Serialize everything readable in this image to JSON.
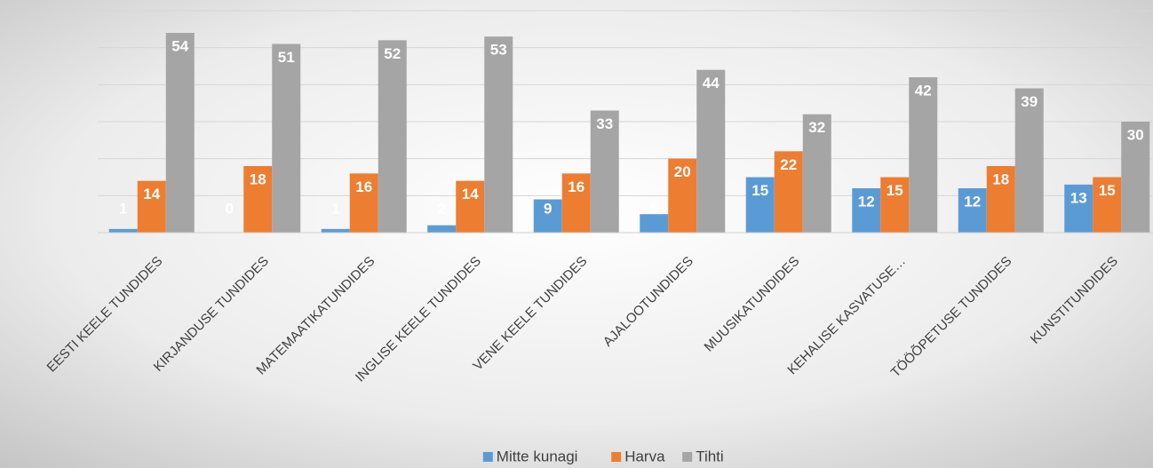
{
  "chart_data": {
    "type": "bar",
    "categories": [
      "EESTI KEELE TUNDIDES",
      "KIRJANDUSE TUNDIDES",
      "MATEMAATIKATUNDIDES",
      "INGLISE KEELE TUNDIDES",
      "VENE KEELE TUNDIDES",
      "AJALOOTUNDIDES",
      "MUUSIKATUNDIDES",
      "KEHALISE KASVATUSE…",
      "TÖÖÕPETUSE TUNDIDES",
      "KUNSTITUNDIDES"
    ],
    "series": [
      {
        "name": "Mitte kunagi",
        "color": "#5b9bd5",
        "values": [
          1,
          0,
          1,
          2,
          9,
          5,
          15,
          12,
          12,
          13
        ]
      },
      {
        "name": "Harva",
        "color": "#ed7d31",
        "values": [
          14,
          18,
          16,
          14,
          16,
          20,
          22,
          15,
          18,
          15
        ]
      },
      {
        "name": "Tihti",
        "color": "#a5a5a5",
        "values": [
          54,
          51,
          52,
          53,
          33,
          44,
          32,
          42,
          39,
          30
        ]
      }
    ],
    "ylim": [
      0,
      60
    ],
    "yticks": [
      0,
      10,
      20,
      30,
      40,
      50,
      60
    ],
    "grid": true,
    "legend": "bottom"
  }
}
